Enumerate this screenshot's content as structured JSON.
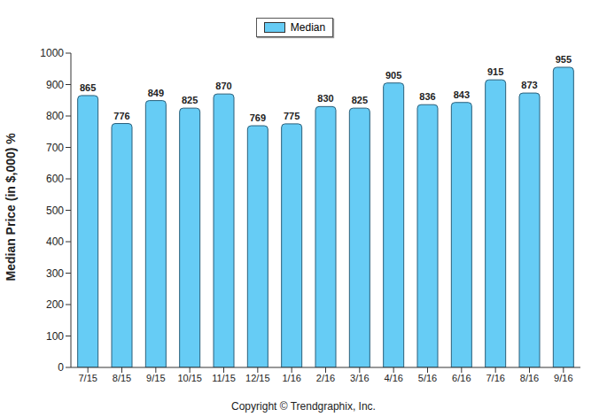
{
  "chart_data": {
    "type": "bar",
    "y_label": "Median Price (in $,000) %",
    "annotation": "Copyright © Trendgraphix, Inc.",
    "categories": [
      "7/15",
      "8/15",
      "9/15",
      "10/15",
      "11/15",
      "12/15",
      "1/16",
      "2/16",
      "3/16",
      "4/16",
      "5/16",
      "6/16",
      "7/16",
      "8/16",
      "9/16"
    ],
    "series": [
      {
        "name": "Median",
        "color": "#66ccf5",
        "values": [
          865,
          776,
          849,
          825,
          870,
          769,
          775,
          830,
          825,
          905,
          836,
          843,
          915,
          873,
          955
        ]
      }
    ],
    "ylim": [
      0,
      1000
    ],
    "yticks": [
      0,
      100,
      200,
      300,
      400,
      500,
      600,
      700,
      800,
      900,
      1000
    ],
    "grid": false,
    "legend": "top",
    "data_labels": true
  }
}
